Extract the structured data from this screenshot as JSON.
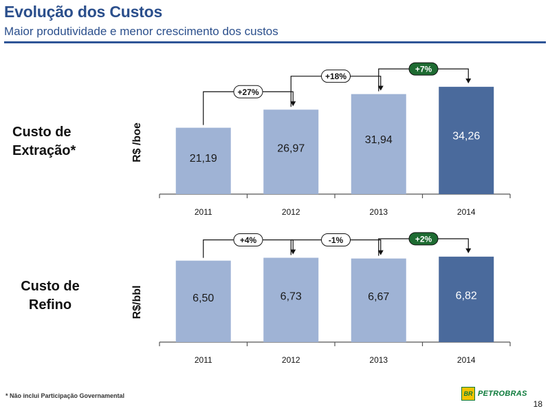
{
  "header": {
    "title": "Evolução dos Custos",
    "subtitle": "Maior produtividade e menor crescimento dos custos"
  },
  "colors": {
    "bar_light": "#9fb3d5",
    "bar_dark": "#4a6a9c",
    "badge_green": "#1e6b32",
    "title_blue": "#2b4f8c"
  },
  "chart_data": [
    {
      "type": "bar",
      "section_label": [
        "Custo de",
        "Extração*"
      ],
      "ylabel": "R$ /boe",
      "categories": [
        "2011",
        "2012",
        "2013",
        "2014"
      ],
      "values": [
        21.19,
        26.97,
        31.94,
        34.26
      ],
      "value_labels": [
        "21,19",
        "26,97",
        "31,94",
        "34,26"
      ],
      "highlight_index": 3,
      "changes": [
        {
          "label": "+27%",
          "highlight": false
        },
        {
          "label": "+18%",
          "highlight": false
        },
        {
          "label": "+7%",
          "highlight": true
        }
      ],
      "ylim": [
        0,
        40
      ]
    },
    {
      "type": "bar",
      "section_label": [
        "Custo de",
        "Refino"
      ],
      "ylabel": "R$/bbl",
      "categories": [
        "2011",
        "2012",
        "2013",
        "2014"
      ],
      "values": [
        6.5,
        6.73,
        6.67,
        6.82
      ],
      "value_labels": [
        "6,50",
        "6,73",
        "6,67",
        "6,82"
      ],
      "highlight_index": 3,
      "changes": [
        {
          "label": "+4%",
          "highlight": false
        },
        {
          "label": "-1%",
          "highlight": false
        },
        {
          "label": "+2%",
          "highlight": true
        }
      ],
      "ylim": [
        0,
        7.8
      ]
    }
  ],
  "footer": {
    "footnote": "* Não inclui Participação Governamental",
    "logo_mark": "BR",
    "logo_text": "PETROBRAS",
    "page_number": "18"
  }
}
